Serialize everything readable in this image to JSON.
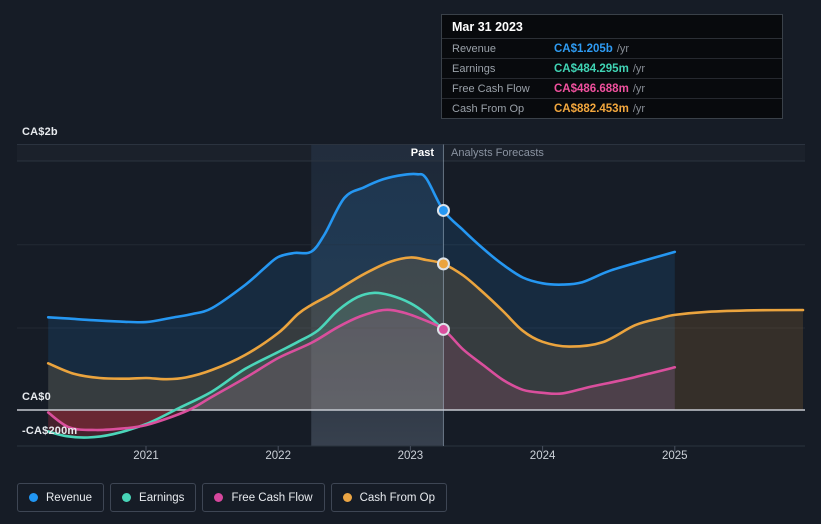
{
  "tooltip": {
    "date": "Mar 31 2023",
    "rows": [
      {
        "label": "Revenue",
        "value": "CA$1.205b",
        "suffix": "/yr",
        "color": "#2e9bf3"
      },
      {
        "label": "Earnings",
        "value": "CA$484.295m",
        "suffix": "/yr",
        "color": "#3fd4b4"
      },
      {
        "label": "Free Cash Flow",
        "value": "CA$486.688m",
        "suffix": "/yr",
        "color": "#f0509e"
      },
      {
        "label": "Cash From Op",
        "value": "CA$882.453m",
        "suffix": "/yr",
        "color": "#f2a73d"
      }
    ]
  },
  "sections": {
    "past_label": "Past",
    "forecast_label": "Analysts Forecasts"
  },
  "axis": {
    "y_tick_labels": [
      "CA$2b",
      "CA$0",
      "-CA$200m"
    ],
    "x_tick_labels": [
      "2021",
      "2022",
      "2023",
      "2024",
      "2025"
    ]
  },
  "legend": [
    {
      "id": "revenue",
      "label": "Revenue",
      "color": "#2196f3"
    },
    {
      "id": "earnings",
      "label": "Earnings",
      "color": "#48d5b8"
    },
    {
      "id": "free-cash-flow",
      "label": "Free Cash Flow",
      "color": "#d6479d"
    },
    {
      "id": "cash-from-op",
      "label": "Cash From Op",
      "color": "#ebа544"
    }
  ],
  "chart_data": {
    "type": "area",
    "title": "Past performance and analysts forecasts",
    "unit": "CA$ millions per year",
    "x_unit": "decimal year",
    "x_ticks": [
      2021,
      2022,
      2023,
      2024,
      2025
    ],
    "x_range": [
      2020.26,
      2025.97
    ],
    "y_gridline_values_m": [
      2000,
      0,
      -200
    ],
    "divider_x": 2023.25,
    "highlight_band": [
      2022.25,
      2023.25
    ],
    "marker_date": "Mar 31 2023",
    "negative_fill_color": "#e63c4b",
    "series": [
      {
        "name": "Revenue",
        "color": "#2597f2",
        "has_marker": true,
        "marker_value_m": 1205,
        "points": [
          [
            2020.26,
            560
          ],
          [
            2020.42,
            552
          ],
          [
            2020.6,
            542
          ],
          [
            2020.78,
            535
          ],
          [
            2021.0,
            531
          ],
          [
            2021.2,
            558
          ],
          [
            2021.35,
            580
          ],
          [
            2021.5,
            616
          ],
          [
            2021.75,
            755
          ],
          [
            2021.9,
            860
          ],
          [
            2022.0,
            924
          ],
          [
            2022.12,
            948
          ],
          [
            2022.25,
            956
          ],
          [
            2022.35,
            1060
          ],
          [
            2022.5,
            1280
          ],
          [
            2022.65,
            1345
          ],
          [
            2022.8,
            1395
          ],
          [
            2022.95,
            1420
          ],
          [
            2023.05,
            1424
          ],
          [
            2023.12,
            1398
          ],
          [
            2023.25,
            1205
          ],
          [
            2023.4,
            1085
          ],
          [
            2023.55,
            975
          ],
          [
            2023.7,
            878
          ],
          [
            2023.85,
            800
          ],
          [
            2024.0,
            765
          ],
          [
            2024.15,
            757
          ],
          [
            2024.3,
            772
          ],
          [
            2024.5,
            838
          ],
          [
            2024.75,
            898
          ],
          [
            2025.0,
            955
          ]
        ]
      },
      {
        "name": "Earnings",
        "color": "#4bd6ba",
        "has_marker": false,
        "marker_value_m": 484.295,
        "points": [
          [
            2020.26,
            -130
          ],
          [
            2020.4,
            -158
          ],
          [
            2020.56,
            -166
          ],
          [
            2020.75,
            -146
          ],
          [
            2021.0,
            -85
          ],
          [
            2021.25,
            12
          ],
          [
            2021.5,
            112
          ],
          [
            2021.75,
            248
          ],
          [
            2022.0,
            350
          ],
          [
            2022.15,
            412
          ],
          [
            2022.3,
            480
          ],
          [
            2022.45,
            600
          ],
          [
            2022.6,
            682
          ],
          [
            2022.72,
            707
          ],
          [
            2022.85,
            692
          ],
          [
            2023.0,
            645
          ],
          [
            2023.12,
            580
          ],
          [
            2023.25,
            484
          ]
        ]
      },
      {
        "name": "Free Cash Flow",
        "color": "#da4f9d",
        "has_marker": true,
        "marker_value_m": 486.688,
        "points": [
          [
            2020.26,
            -15
          ],
          [
            2020.42,
            -105
          ],
          [
            2020.62,
            -121
          ],
          [
            2020.85,
            -110
          ],
          [
            2021.0,
            -91
          ],
          [
            2021.2,
            -40
          ],
          [
            2021.35,
            10
          ],
          [
            2021.5,
            80
          ],
          [
            2021.75,
            193
          ],
          [
            2022.0,
            314
          ],
          [
            2022.25,
            405
          ],
          [
            2022.45,
            500
          ],
          [
            2022.62,
            565
          ],
          [
            2022.8,
            604
          ],
          [
            2022.95,
            588
          ],
          [
            2023.1,
            545
          ],
          [
            2023.25,
            487
          ],
          [
            2023.4,
            365
          ],
          [
            2023.55,
            272
          ],
          [
            2023.7,
            182
          ],
          [
            2023.85,
            122
          ],
          [
            2024.0,
            104
          ],
          [
            2024.15,
            100
          ],
          [
            2024.35,
            138
          ],
          [
            2024.6,
            180
          ],
          [
            2024.82,
            222
          ],
          [
            2025.0,
            258
          ]
        ]
      },
      {
        "name": "Cash From Op",
        "color": "#eba43e",
        "has_marker": true,
        "marker_value_m": 882.453,
        "points": [
          [
            2020.26,
            282
          ],
          [
            2020.45,
            220
          ],
          [
            2020.65,
            193
          ],
          [
            2020.85,
            189
          ],
          [
            2021.0,
            193
          ],
          [
            2021.15,
            186
          ],
          [
            2021.3,
            196
          ],
          [
            2021.5,
            242
          ],
          [
            2021.75,
            332
          ],
          [
            2022.0,
            465
          ],
          [
            2022.15,
            580
          ],
          [
            2022.25,
            634
          ],
          [
            2022.4,
            700
          ],
          [
            2022.55,
            775
          ],
          [
            2022.7,
            842
          ],
          [
            2022.85,
            896
          ],
          [
            2023.0,
            921
          ],
          [
            2023.12,
            906
          ],
          [
            2023.25,
            882
          ],
          [
            2023.4,
            812
          ],
          [
            2023.55,
            710
          ],
          [
            2023.7,
            598
          ],
          [
            2023.85,
            478
          ],
          [
            2024.0,
            412
          ],
          [
            2024.2,
            383
          ],
          [
            2024.45,
            408
          ],
          [
            2024.7,
            512
          ],
          [
            2024.9,
            556
          ],
          [
            2025.0,
            574
          ],
          [
            2025.25,
            593
          ],
          [
            2025.6,
            602
          ],
          [
            2025.97,
            604
          ]
        ]
      }
    ],
    "legend_position": "bottom"
  }
}
